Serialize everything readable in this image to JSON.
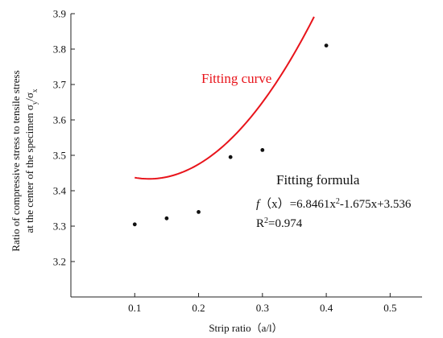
{
  "chart_data": {
    "type": "scatter",
    "xlabel": "Strip ratio（a/l）",
    "ylabel_line1": "Ratio of compressive stress to tensile stress",
    "ylabel_line2": "at the center of the specimen σy/σx",
    "xlim": [
      0.0,
      0.55
    ],
    "ylim": [
      3.1,
      3.9
    ],
    "x_ticks": [
      0.1,
      0.2,
      0.3,
      0.4,
      0.5
    ],
    "x_tick_labels": [
      "0.1",
      "0.2",
      "0.3",
      "0.4",
      "0.5"
    ],
    "y_ticks": [
      3.2,
      3.3,
      3.4,
      3.5,
      3.6,
      3.7,
      3.8,
      3.9
    ],
    "y_tick_labels": [
      "3.2",
      "3.3",
      "3.4",
      "3.5",
      "3.6",
      "3.7",
      "3.8",
      "3.9"
    ],
    "x": [
      0.1,
      0.15,
      0.2,
      0.25,
      0.3,
      0.4
    ],
    "y": [
      3.305,
      3.322,
      3.34,
      3.495,
      3.515,
      3.81
    ],
    "fit": {
      "a": 6.8461,
      "b": -1.675,
      "c": 3.536,
      "x_range": [
        0.1,
        0.42
      ]
    },
    "fit_color": "#e8141b",
    "point_color": "#111111",
    "grid": false,
    "annotations": {
      "curve_label": "Fitting curve",
      "formula_title": "Fitting formula",
      "formula_f": "f",
      "formula_x": "（x）",
      "formula_rhs_a": "=6.8461x",
      "formula_sup": "2",
      "formula_rhs_b": "-1.675x+3.536",
      "r2_r": "R",
      "r2_sup": "2",
      "r2_value": "=0.974"
    }
  }
}
